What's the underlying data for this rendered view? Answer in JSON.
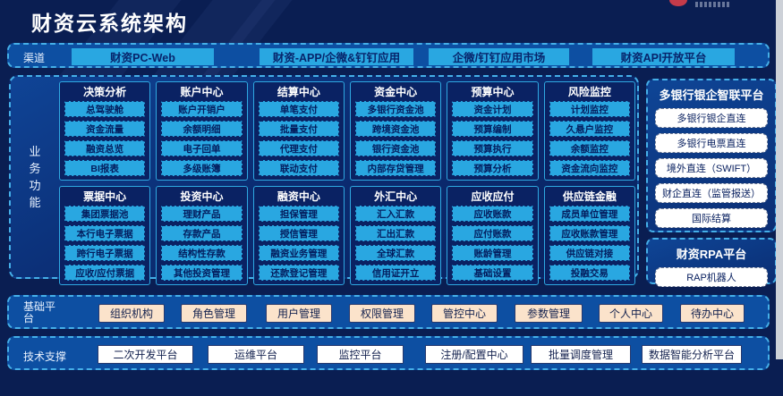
{
  "header": {
    "title": "财资云系统架构"
  },
  "channel_row": {
    "label": "渠道",
    "items": [
      "财资PC-Web",
      "财资-APP/企微&钉钉应用",
      "企微/钉钉应用市场",
      "财资API开放平台"
    ]
  },
  "business": {
    "label": "业务功能",
    "groups": [
      {
        "title": "决策分析",
        "items": [
          "总驾驶舱",
          "资金流量",
          "融资总览",
          "BI报表"
        ]
      },
      {
        "title": "账户中心",
        "items": [
          "账户开销户",
          "余额明细",
          "电子回单",
          "多级账簿"
        ]
      },
      {
        "title": "结算中心",
        "items": [
          "单笔支付",
          "批量支付",
          "代理支付",
          "联动支付"
        ]
      },
      {
        "title": "资金中心",
        "items": [
          "多银行资金池",
          "跨境资金池",
          "银行资金池",
          "内部存贷管理"
        ]
      },
      {
        "title": "预算中心",
        "items": [
          "资金计划",
          "预算编制",
          "预算执行",
          "预算分析"
        ]
      },
      {
        "title": "风险监控",
        "items": [
          "计划监控",
          "久悬户监控",
          "余额监控",
          "资金流向监控"
        ]
      },
      {
        "title": "票据中心",
        "items": [
          "集团票据池",
          "本行电子票据",
          "跨行电子票据",
          "应收/应付票据"
        ]
      },
      {
        "title": "投资中心",
        "items": [
          "理财产品",
          "存款产品",
          "结构性存款",
          "其他投资管理"
        ]
      },
      {
        "title": "融资中心",
        "items": [
          "担保管理",
          "授信管理",
          "融资业务管理",
          "还款登记管理"
        ]
      },
      {
        "title": "外汇中心",
        "items": [
          "汇入汇款",
          "汇出汇款",
          "全球汇款",
          "信用证开立"
        ]
      },
      {
        "title": "应收应付",
        "items": [
          "应收账款",
          "应付账款",
          "账龄管理",
          "基础设置"
        ]
      },
      {
        "title": "供应链金融",
        "items": [
          "成员单位管理",
          "应收账款管理",
          "供应链对接",
          "投融交易"
        ]
      }
    ]
  },
  "bank_panel": {
    "title": "多银行银企智联平台",
    "items": [
      "多银行银企直连",
      "多银行电票直连",
      "境外直连（SWIFT）",
      "财企直连（监管报送）",
      "国际结算"
    ]
  },
  "rpa_panel": {
    "title": "财资RPA平台",
    "items": [
      "RAP机器人"
    ]
  },
  "base_row": {
    "label": "基础平台",
    "items": [
      "组织机构",
      "角色管理",
      "用户管理",
      "权限管理",
      "管控中心",
      "参数管理",
      "个人中心",
      "待办中心"
    ]
  },
  "tech_row": {
    "label": "技术支撑",
    "items": [
      "二次开发平台",
      "运维平台",
      "监控平台",
      "注册/配置中心",
      "批量调度管理",
      "数据智能分析平台"
    ]
  },
  "colors": {
    "background_navy": "#0A1E52",
    "panel_blue": "#0D4FA2",
    "group_navy": "#0A2263",
    "accent_cyan": "#29A7E1",
    "dashed_border": "#45AFE8",
    "chip_peach": "#FBE3CB",
    "chip_text_navy": "#0A2160",
    "logo_red": "#C43B4A"
  }
}
